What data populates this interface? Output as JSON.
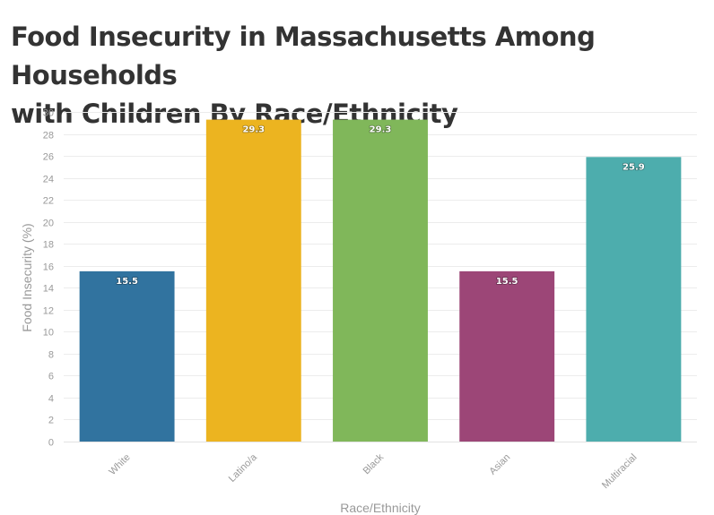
{
  "title_lines": [
    "Food Insecurity in Massachusetts Among Households",
    "with Children By Race/Ethnicity"
  ],
  "chart_data": {
    "type": "bar",
    "title": "Food Insecurity in Massachusetts Among Households with Children By Race/Ethnicity",
    "categories": [
      "White",
      "Latino/a",
      "Black",
      "Asian",
      "Multiracial"
    ],
    "values": [
      15.5,
      29.3,
      29.3,
      15.5,
      25.9
    ],
    "data_labels": [
      "15.5",
      "29.3",
      "29.3",
      "15.5",
      "25.9"
    ],
    "colors": [
      "#31739f",
      "#ecb420",
      "#80b75a",
      "#9c4677",
      "#4dadad"
    ],
    "xlabel": "Race/Ethnicity",
    "ylabel": "Food Insecurity (%)",
    "ylim": [
      0,
      30
    ],
    "yticks": [
      0,
      2,
      4,
      6,
      8,
      10,
      12,
      14,
      16,
      18,
      20,
      22,
      24,
      26,
      28,
      30
    ],
    "grid": true,
    "legend": "none"
  }
}
